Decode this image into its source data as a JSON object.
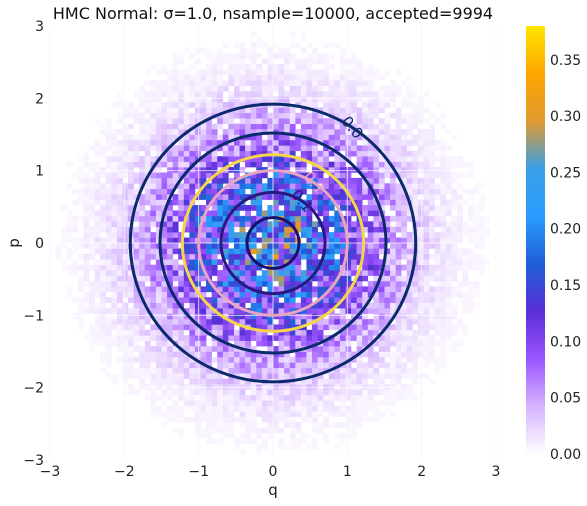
{
  "chart_data": {
    "type": "heatmap",
    "title": "HMC Normal: σ=1.0, nsample=10000, accepted=9994",
    "xlabel": "q",
    "ylabel": "p",
    "xlim": [
      -3,
      3
    ],
    "ylim": [
      -3,
      3
    ],
    "x_ticks": [
      "−3",
      "−2",
      "−1",
      "0",
      "1",
      "2",
      "3"
    ],
    "y_ticks": [
      "−3",
      "−2",
      "−1",
      "0",
      "1",
      "2",
      "3"
    ],
    "grid": true,
    "bins": 80,
    "colorscale_range": [
      0,
      0.38
    ],
    "colorbar_ticks": [
      "0.00",
      "0.05",
      "0.10",
      "0.15",
      "0.20",
      "0.25",
      "0.30",
      "0.35"
    ],
    "colorbar_tick_values": [
      0,
      0.05,
      0.1,
      0.15,
      0.2,
      0.25,
      0.3,
      0.35
    ],
    "colorscale": [
      "#ffffff",
      "#d6b3ff",
      "#9a55ff",
      "#5a2fd6",
      "#1f5fd6",
      "#2a9cff",
      "#3aa0e8",
      "#e09a30",
      "#ffa500",
      "#ffe600"
    ],
    "contours": [
      {
        "radius": 0.35,
        "color": "#1a0f6e",
        "label": ""
      },
      {
        "radius": 0.7,
        "color": "#2a1880",
        "label": "0.1"
      },
      {
        "radius": 1.0,
        "color": "#e8a4c0",
        "label": "0.1"
      },
      {
        "radius": 1.22,
        "color": "#f5d54a",
        "label": ""
      },
      {
        "radius": 1.52,
        "color": "#0a2a6a",
        "label": ""
      },
      {
        "radius": 1.92,
        "color": "#0a2a6a",
        "label": "0.0"
      }
    ]
  }
}
